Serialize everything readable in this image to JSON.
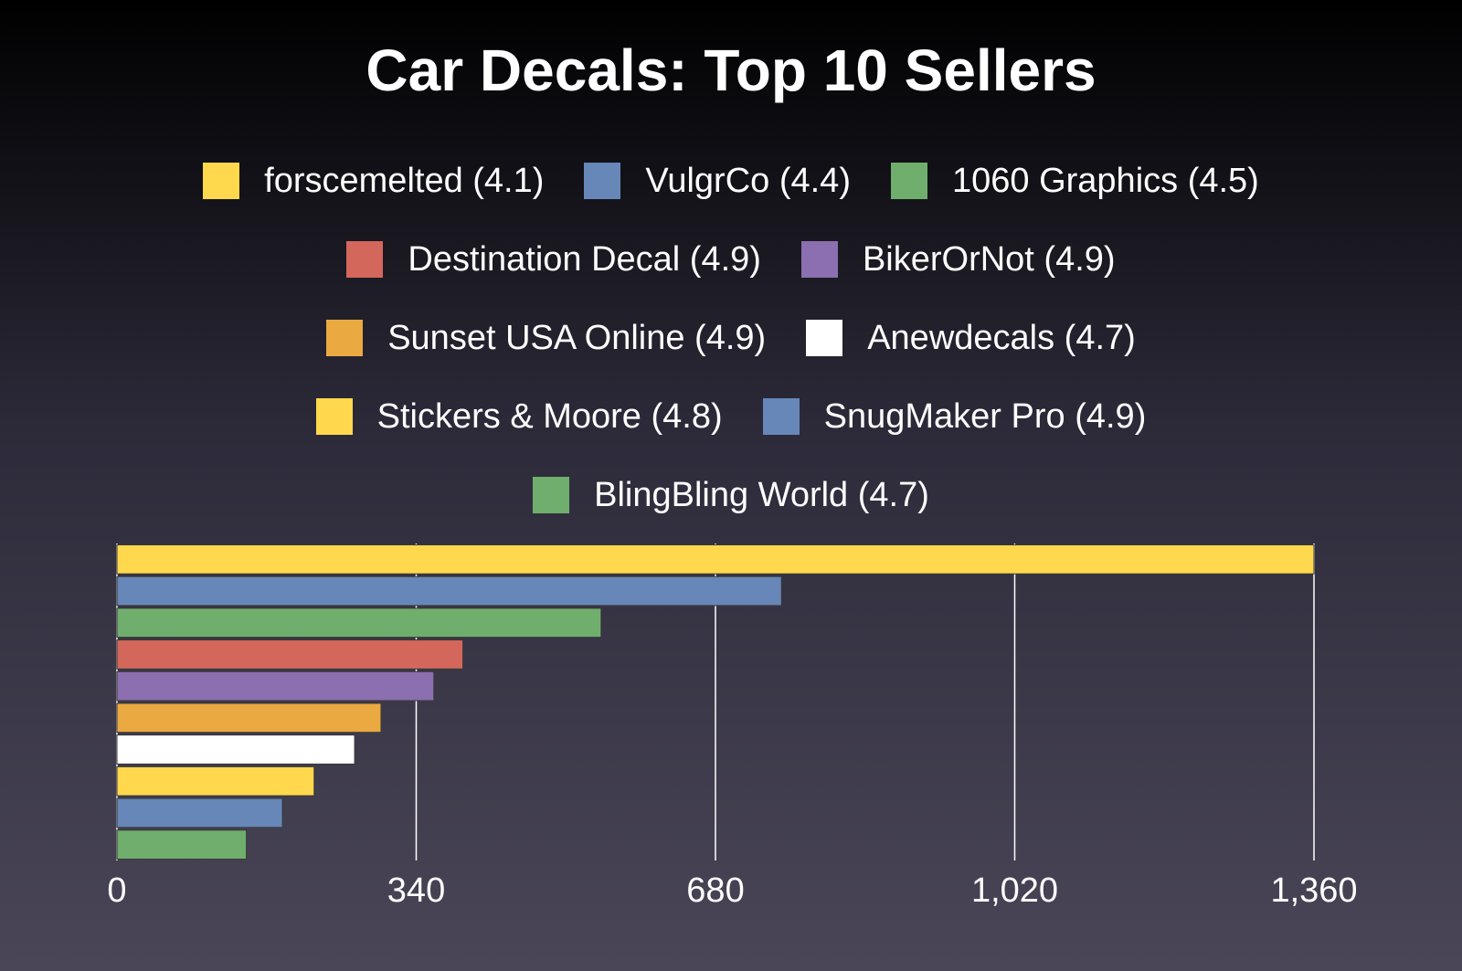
{
  "chart_data": {
    "type": "bar",
    "orientation": "horizontal",
    "title": "Car Decals: Top 10 Sellers",
    "categories": [
      "forscemelted (4.1)",
      "VulgrCo (4.4)",
      "1060 Graphics (4.5)",
      "Destination Decal (4.9)",
      "BikerOrNot (4.9)",
      "Sunset USA Online (4.9)",
      "Anewdecals (4.7)",
      "Stickers & Moore (4.8)",
      "SnugMaker Pro (4.9)",
      "BlingBling World (4.7)"
    ],
    "values": [
      1360,
      755,
      550,
      393,
      360,
      300,
      270,
      224,
      188,
      147
    ],
    "colors": [
      "#ffd84d",
      "#6687b8",
      "#70ae6e",
      "#d4675c",
      "#8c6fb0",
      "#eba941",
      "#ffffff",
      "#ffd84d",
      "#6687b8",
      "#70ae6e"
    ],
    "xlim": [
      0,
      1360
    ],
    "xticks": [
      0,
      340,
      680,
      1020,
      1360
    ],
    "xtick_labels": [
      "0",
      "340",
      "680",
      "1,020",
      "1,360"
    ],
    "xlabel": "",
    "ylabel": "",
    "grid": "vertical",
    "legend_position": "top"
  }
}
